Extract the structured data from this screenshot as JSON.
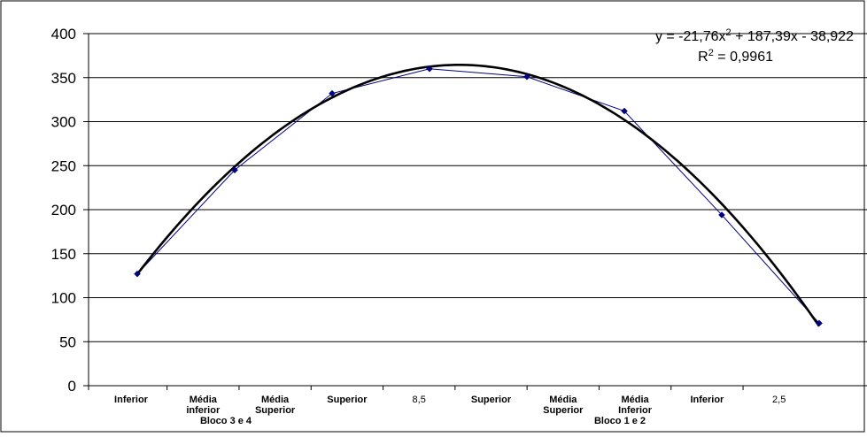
{
  "chart_data": {
    "type": "line",
    "title": "",
    "xlabel": "",
    "ylabel": "",
    "ylim": [
      0,
      400
    ],
    "yticks": [
      0,
      50,
      100,
      150,
      200,
      250,
      300,
      350,
      400
    ],
    "grid": "horizontal",
    "x": [
      1,
      2,
      3,
      4,
      5,
      6,
      7,
      8
    ],
    "categories": [
      {
        "lines": [
          "Inferior"
        ],
        "bold": true
      },
      {
        "lines": [
          "Média",
          "inferior"
        ],
        "bold": true
      },
      {
        "lines": [
          "Média",
          "Superior"
        ],
        "bold": true
      },
      {
        "lines": [
          "Superior"
        ],
        "bold": true
      },
      {
        "lines": [
          "8,5"
        ],
        "bold": false
      },
      {
        "lines": [
          "Superior"
        ],
        "bold": true
      },
      {
        "lines": [
          "Média",
          "Superior"
        ],
        "bold": true
      },
      {
        "lines": [
          "Média",
          "Inferior"
        ],
        "bold": true
      },
      {
        "lines": [
          "Inferior"
        ],
        "bold": true
      },
      {
        "lines": [
          "2,5"
        ],
        "bold": false
      }
    ],
    "groups": [
      {
        "label": "Bloco 3 e 4"
      },
      {
        "label": "Bloco 1 e 2"
      }
    ],
    "series": [
      {
        "color": "#000080",
        "marker": "diamond",
        "values": [
          127,
          245,
          332,
          360,
          351,
          312,
          194,
          71
        ]
      }
    ],
    "trendline": {
      "type": "polynomial",
      "order": 2,
      "coefficients": [
        -21.76,
        187.39,
        -38.922
      ],
      "color": "#000000",
      "equation_prefix": "y = -21,76x",
      "equation_exp": "2",
      "equation_suffix": " + 187,39x - 38,922",
      "r2_prefix": "R",
      "r2_exp": "2",
      "r2_suffix": " = 0,9961"
    }
  }
}
